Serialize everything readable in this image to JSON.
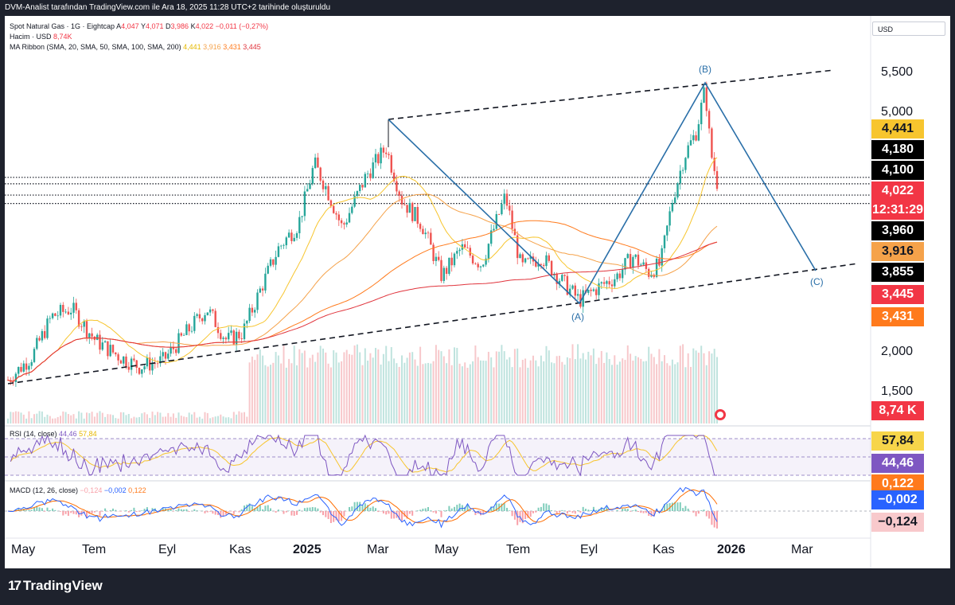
{
  "topbar": {
    "text": "DVM-Analist tarafından TradingView.com ile Ara 18, 2025 11:28 UTC+2 tarihinde oluşturuldu"
  },
  "legend": {
    "symbol_line": "Spot Natural Gas · 1G · Eightcap",
    "a_label": "A",
    "a_value": "4,047",
    "y_label": "Y",
    "y_value": "4,071",
    "d_label": "D",
    "d_value": "3,986",
    "k_label": "K",
    "k_value": "4,022",
    "change": "−0,011 (−0,27%)",
    "volume_label": "Hacim · USD",
    "volume_value": "8,74K",
    "ma_label": "MA Ribbon (SMA, 20, SMA, 50, SMA, 100, SMA, 200)",
    "ma_values": [
      "4,441",
      "3,916",
      "3,431",
      "3,445"
    ]
  },
  "currency_button": "USD",
  "colors": {
    "sma20": "#f7c52e",
    "sma50": "#f5a24a",
    "sma100": "#ff7a1c",
    "sma200": "#e0343c",
    "up": "#26a69a",
    "down": "#ef5350",
    "wave": "#2a6fa8",
    "rsi": "#7e57c2",
    "macd": "#2962ff",
    "signal": "#ff6d00"
  },
  "price_tags": [
    {
      "label": "4,441",
      "bg": "#f7c52e",
      "fg": "#131722"
    },
    {
      "label": "4,180",
      "bg": "#000000",
      "fg": "#ffffff"
    },
    {
      "label": "4,100",
      "bg": "#000000",
      "fg": "#ffffff"
    },
    {
      "label": "4,022",
      "bg": "#f23645",
      "fg": "#ffffff"
    },
    {
      "label": "12:31:29",
      "bg": "#f23645",
      "fg": "#ffffff"
    },
    {
      "label": "3,960",
      "bg": "#000000",
      "fg": "#ffffff"
    },
    {
      "label": "3,916",
      "bg": "#f5a24a",
      "fg": "#131722"
    },
    {
      "label": "3,855",
      "bg": "#000000",
      "fg": "#ffffff"
    },
    {
      "label": "3,445",
      "bg": "#f23645",
      "fg": "#ffffff"
    },
    {
      "label": "3,431",
      "bg": "#ff7a1c",
      "fg": "#ffffff"
    },
    {
      "label": "8,74 K",
      "bg": "#f23645",
      "fg": "#ffffff"
    },
    {
      "label": "57,84",
      "bg": "#f7d54a",
      "fg": "#131722"
    },
    {
      "label": "44,46",
      "bg": "#7e57c2",
      "fg": "#ffffff"
    },
    {
      "label": "0,122",
      "bg": "#ff7a1c",
      "fg": "#ffffff"
    },
    {
      "label": "−0,002",
      "bg": "#2962ff",
      "fg": "#ffffff"
    },
    {
      "label": "−0,124",
      "bg": "#f8c9cc",
      "fg": "#131722"
    }
  ],
  "rsi_header": {
    "label": "RSI (14, close)",
    "v1": "44,46",
    "v2": "57,84"
  },
  "macd_header": {
    "label": "MACD (12, 26, close)",
    "v1": "−0,124",
    "v2": "−0,002",
    "v3": "0,122"
  },
  "waves": {
    "a": "(A)",
    "b": "(B)",
    "c": "(C)"
  },
  "footer": {
    "brand": "TradingView",
    "icon": "tradingview-logo-icon"
  },
  "chart_data": {
    "type": "candlestick",
    "title": "Spot Natural Gas · 1G · Eightcap",
    "ylabel": "USD",
    "y_ticks": [
      "5,500",
      "5,000",
      "2,000",
      "1,500"
    ],
    "x_ticks": [
      "May",
      "Tem",
      "Eyl",
      "Kas",
      "2025",
      "Mar",
      "May",
      "Tem",
      "Eyl",
      "Kas",
      "2026",
      "Mar"
    ],
    "horizontal_levels": [
      4.18,
      4.1,
      3.96,
      3.855
    ],
    "ma_ribbon": {
      "sma20": 4.441,
      "sma50": 3.916,
      "sma100": 3.431,
      "sma200": 3.445
    },
    "wave_points": [
      {
        "label": "(A)",
        "approx_date": "Eyl 2025",
        "price": 2.65
      },
      {
        "label": "(B)",
        "approx_date": "Ara 2025",
        "price": 5.5
      },
      {
        "label": "(C)",
        "approx_date": "Şub 2026",
        "price": 2.9
      }
    ],
    "last_price": 4.022,
    "volume_last": "8,74K",
    "rsi": {
      "value": 44.46,
      "ma": 57.84
    },
    "macd": {
      "hist": -0.124,
      "macd": -0.002,
      "signal": 0.122
    }
  }
}
